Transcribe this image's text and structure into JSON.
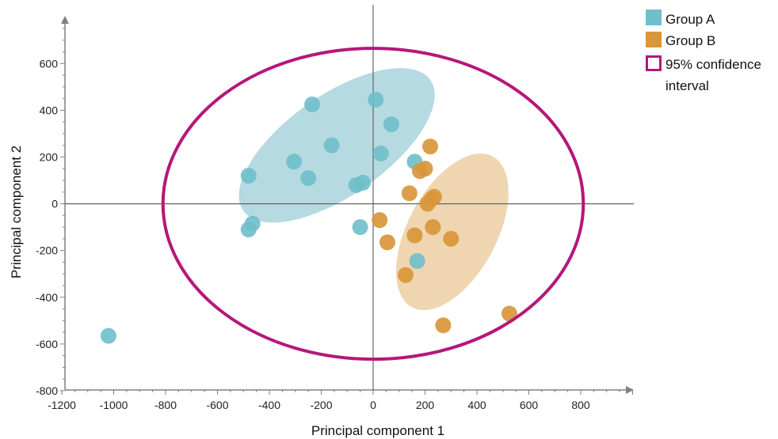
{
  "chart_data": {
    "type": "scatter",
    "xlabel": "Principal component 1",
    "ylabel": "Principal component 2",
    "xlim": [
      -1200,
      1000
    ],
    "ylim": [
      -800,
      800
    ],
    "xticks": [
      -1200,
      -1000,
      -800,
      -600,
      -400,
      -200,
      0,
      200,
      400,
      600,
      800
    ],
    "yticks": [
      -800,
      -600,
      -400,
      -200,
      0,
      200,
      400,
      600
    ],
    "x_tick_labels": [
      "-1200",
      "-1000",
      "-800",
      "-600",
      "-400",
      "-200",
      "0",
      "200",
      "400",
      "600",
      "800"
    ],
    "y_tick_labels": [
      "-800",
      "-600",
      "-400",
      "-200",
      "0",
      "200",
      "400",
      "600"
    ],
    "legend_position": "top-right",
    "legend": {
      "group_a": "Group A",
      "group_b": "Group B",
      "ci_line1": "95% confidence",
      "ci_line2": "interval"
    },
    "colors": {
      "group_a": "#6ebfca",
      "group_b": "#d9963a",
      "group_a_region": "#a8d4dc",
      "group_b_region": "#eccfa3",
      "confidence_interval": "#b5177a",
      "axes": "#808080"
    },
    "series": [
      {
        "name": "Group A",
        "points": [
          [
            10,
            445
          ],
          [
            -235,
            425
          ],
          [
            70,
            340
          ],
          [
            -160,
            250
          ],
          [
            30,
            215
          ],
          [
            -305,
            180
          ],
          [
            -480,
            120
          ],
          [
            -250,
            110
          ],
          [
            -40,
            90
          ],
          [
            -65,
            80
          ],
          [
            -465,
            -85
          ],
          [
            -480,
            -110
          ],
          [
            -50,
            -100
          ],
          [
            160,
            180
          ],
          [
            170,
            -245
          ],
          [
            -1020,
            -565
          ]
        ]
      },
      {
        "name": "Group B",
        "points": [
          [
            220,
            245
          ],
          [
            200,
            150
          ],
          [
            180,
            140
          ],
          [
            140,
            45
          ],
          [
            235,
            30
          ],
          [
            225,
            20
          ],
          [
            210,
            0
          ],
          [
            25,
            -70
          ],
          [
            230,
            -100
          ],
          [
            160,
            -135
          ],
          [
            300,
            -150
          ],
          [
            55,
            -165
          ],
          [
            125,
            -305
          ],
          [
            270,
            -520
          ],
          [
            525,
            -470
          ]
        ]
      }
    ],
    "regions": [
      {
        "name": "Group A",
        "center": [
          -140,
          250
        ],
        "rx": 440,
        "ry": 215,
        "rotation_deg": -35
      },
      {
        "name": "Group B",
        "center": [
          305,
          -120
        ],
        "rx": 330,
        "ry": 190,
        "rotation_deg": -62
      },
      {
        "name": "95% confidence interval",
        "center": [
          0,
          0
        ],
        "rx": 810,
        "ry": 665,
        "rotation_deg": 0
      }
    ]
  }
}
